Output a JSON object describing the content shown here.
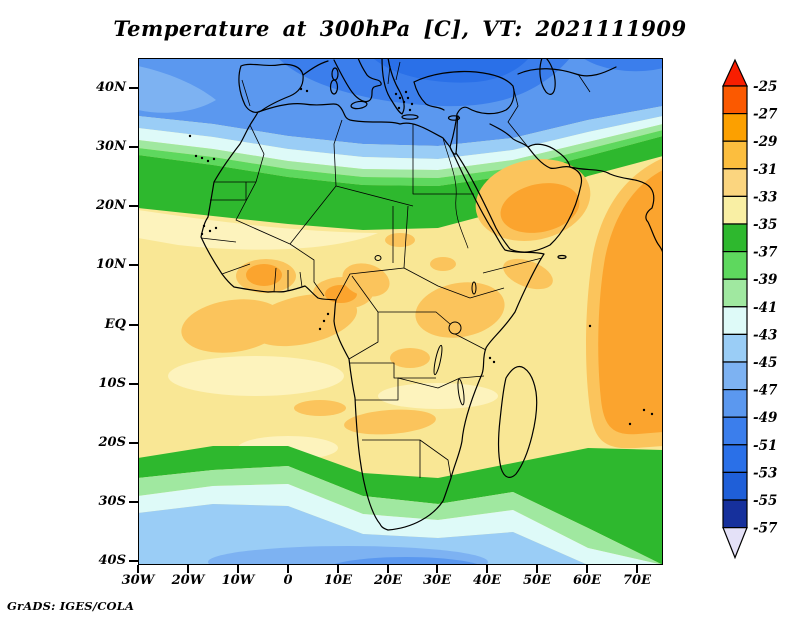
{
  "title": "Temperature at 300hPa [C], VT: 2021111909",
  "credit": "GrADS: IGES/COLA",
  "chart_data": {
    "type": "heatmap",
    "subtype": "filled-contour-map",
    "title": "Temperature at 300hPa [C], VT: 2021111909",
    "variable": "Temperature",
    "level": "300hPa",
    "units": "C",
    "valid_time": "2021111909",
    "region": "Africa, Mediterranean, Arabia (approx 30W-75E, 41S-45N)",
    "grid": false,
    "x_axis": {
      "ticks": [
        "30W",
        "20W",
        "10W",
        "0",
        "10E",
        "20E",
        "30E",
        "40E",
        "50E",
        "60E",
        "70E"
      ]
    },
    "y_axis": {
      "ticks": [
        "40N",
        "30N",
        "20N",
        "10N",
        "EQ",
        "10S",
        "20S",
        "30S",
        "40S"
      ]
    },
    "colorbar": {
      "orientation": "vertical",
      "position": "right",
      "labels": [
        "-25",
        "-27",
        "-29",
        "-31",
        "-33",
        "-35",
        "-37",
        "-39",
        "-41",
        "-43",
        "-45",
        "-47",
        "-49",
        "-51",
        "-53",
        "-55",
        "-57"
      ],
      "cell_colors": [
        "#fb5900",
        "#fca000",
        "#fcbe3e",
        "#fbd57f",
        "#f9efa4",
        "#2eb82e",
        "#5ed85e",
        "#a0e8a0",
        "#defaf8",
        "#9acdf6",
        "#7db2f2",
        "#5b98ef",
        "#3b7eec",
        "#2a70e8",
        "#1f5fd8",
        "#16309c"
      ],
      "arrow_top_color": "#f81e00",
      "arrow_bottom_color": "#e4e1f8"
    },
    "palette": {
      "c27": "#fca000",
      "c29": "#fcbe3e",
      "c31": "#fbd57f",
      "c33": "#f9efa4",
      "c35": "#2eb82e",
      "c37": "#5ed85e",
      "c39": "#a0e8a0",
      "c41": "#defaf8",
      "c43": "#9acdf6",
      "c45": "#7db2f2",
      "c47": "#5b98ef",
      "c49": "#3b7eec",
      "c51": "#2a70e8",
      "yellowBase": "#f9e795",
      "yellowLight": "#fdf3bd",
      "amberPatch": "#fbc45c",
      "orangeDeep": "#fba42e",
      "outline": "#000000"
    },
    "field_summary": [
      "Blue cold pool (-47 to -53 C) over Mediterranean, southern Europe, Turkey and Black Sea, darkest over Greece/Turkey",
      "Narrow light-blue / pale-cyan / green transition band across North Africa near 25-32N, sloping northward toward Arabia",
      "Broad warm pale-yellow field (-31 to -35 C) over Sahara, tropical Africa and tropical oceans",
      "Amber/orange patches (-29 to -31 C) off West Africa, Gulf of Guinea, East Africa, Arabia and western Indian Ocean",
      "Second green band (-35 to -39 C) across 25-35S through South Africa, with pale-cyan and blue (-41 to -47 C) along 35-40S Southern Ocean",
      "Green extends to the bottom-right corner east of Madagascar"
    ]
  }
}
